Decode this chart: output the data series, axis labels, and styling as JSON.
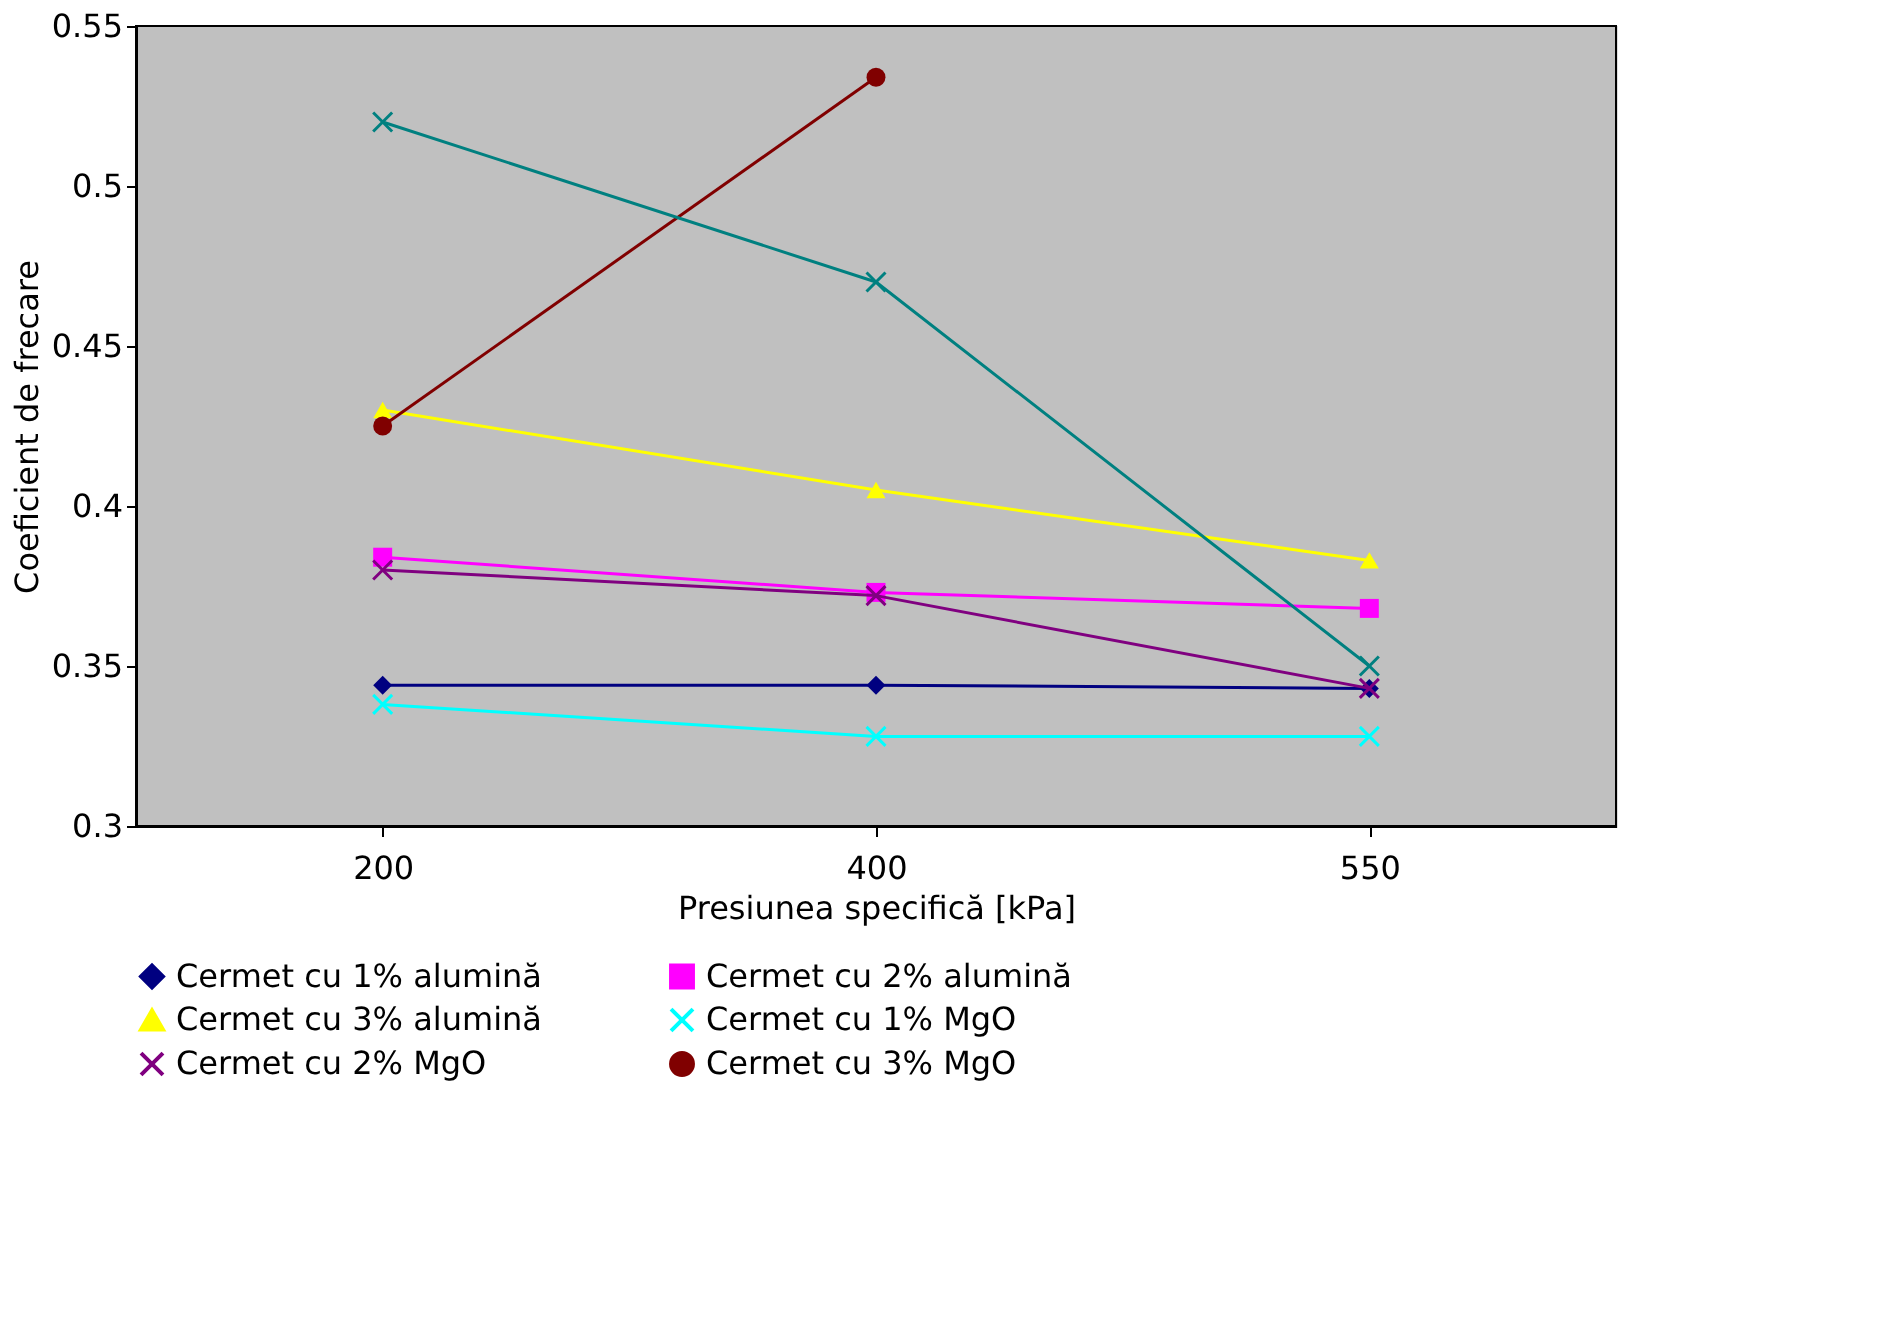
{
  "chart_data": {
    "type": "line",
    "xlabel": "Presiunea specifică [kPa]",
    "ylabel": "Coeficient de frecare",
    "categories": [
      "200",
      "400",
      "550"
    ],
    "ylim": [
      0.3,
      0.55
    ],
    "yticks": [
      0.3,
      0.35,
      0.4,
      0.45,
      0.5,
      0.55
    ],
    "legend": "bottom",
    "series": [
      {
        "name": "Cermet cu 1% alumină",
        "color": "#000080",
        "marker": "diamond",
        "values": [
          0.344,
          0.344,
          0.343
        ]
      },
      {
        "name": "Cermet cu 2% alumină",
        "color": "#ff00ff",
        "marker": "square",
        "values": [
          0.384,
          0.373,
          0.368
        ]
      },
      {
        "name": "Cermet cu 3% alumină",
        "color": "#ffff00",
        "marker": "triangle",
        "values": [
          0.43,
          0.405,
          0.383
        ]
      },
      {
        "name": "Cermet cu 1% MgO",
        "color": "#00ffff",
        "marker": "cross",
        "values": [
          0.338,
          0.328,
          0.328
        ]
      },
      {
        "name": "Cermet cu 2% MgO",
        "color": "#800080",
        "marker": "cross",
        "values": [
          0.38,
          0.372,
          0.343
        ]
      },
      {
        "name": "Cermet cu 3% MgO",
        "color": "#800000",
        "marker": "circle",
        "values": [
          0.425,
          0.534,
          null
        ]
      },
      {
        "color": "#008080",
        "marker": "cross",
        "values": [
          0.52,
          0.47,
          0.35
        ]
      }
    ]
  }
}
